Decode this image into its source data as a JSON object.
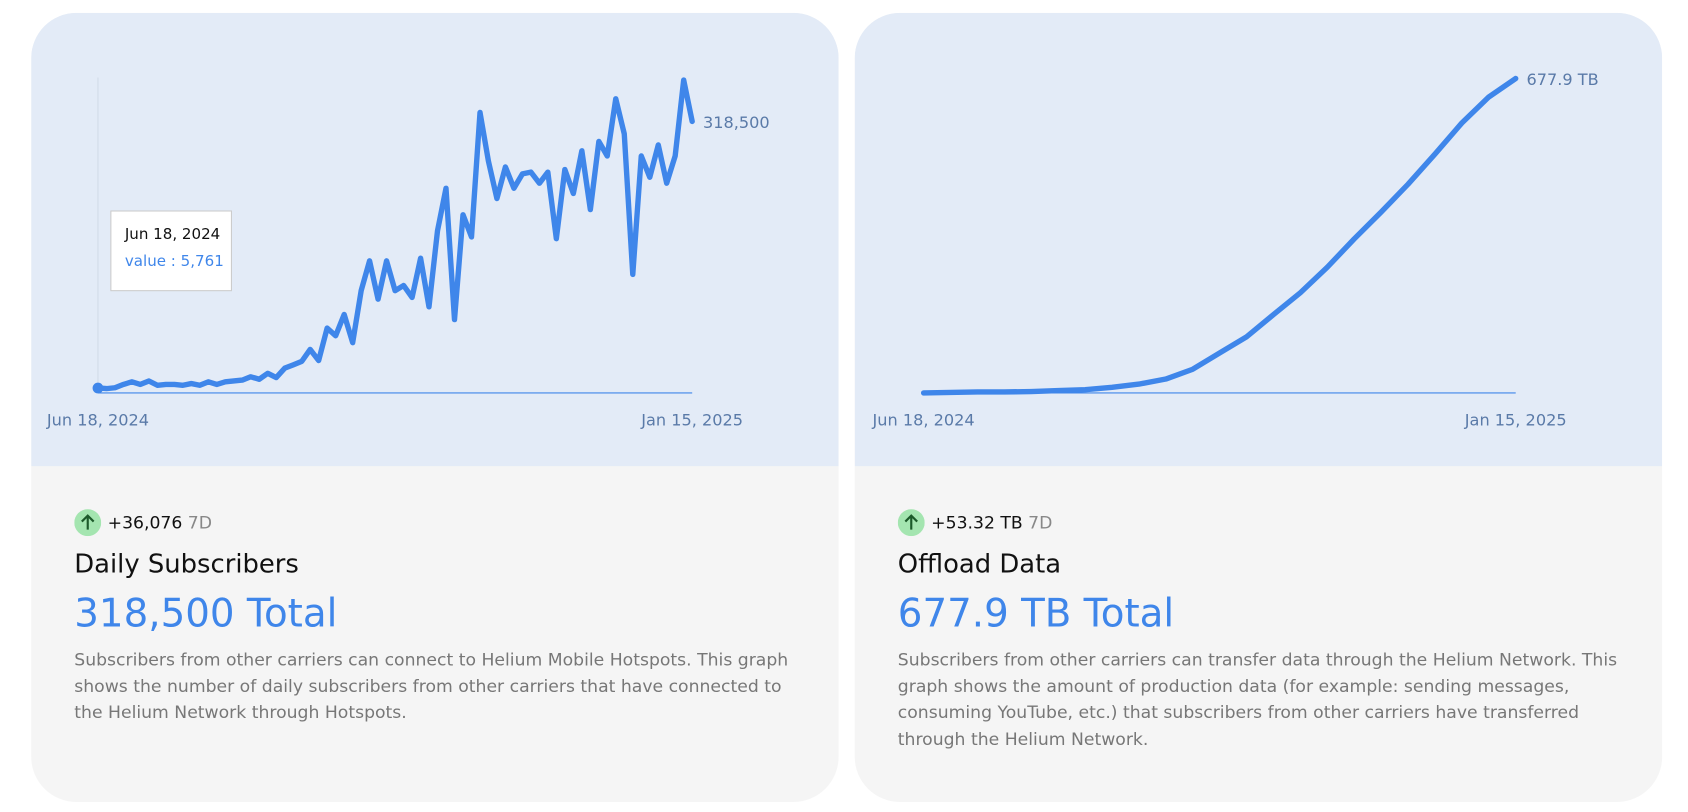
{
  "chart_data": [
    {
      "type": "line",
      "color": "#3f86ea",
      "categories": [
        "Jun 18, 2024",
        null,
        null,
        null,
        null,
        null,
        null,
        null,
        null,
        null,
        null,
        null,
        null,
        null,
        null,
        null,
        null,
        null,
        null,
        null,
        null,
        null,
        null,
        null,
        null,
        null,
        null,
        null,
        null,
        null,
        null,
        null,
        null,
        null,
        null,
        null,
        null,
        null,
        null,
        null,
        null,
        null,
        null,
        null,
        null,
        null,
        null,
        null,
        null,
        null,
        null,
        null,
        null,
        null,
        null,
        null,
        null,
        null,
        null,
        null,
        null,
        null,
        null,
        null,
        null,
        null,
        null,
        null,
        null,
        null,
        "Jan 15, 2025"
      ],
      "values": [
        5761,
        5000,
        6000,
        10000,
        13000,
        10000,
        14000,
        9000,
        10000,
        10000,
        9000,
        11000,
        9000,
        13000,
        10000,
        13000,
        14000,
        15000,
        19000,
        16000,
        23000,
        18000,
        29000,
        33000,
        37000,
        51000,
        38000,
        76000,
        67000,
        92000,
        59000,
        120000,
        155000,
        110000,
        155000,
        120000,
        126000,
        112000,
        158000,
        101000,
        190000,
        240000,
        86000,
        209000,
        183000,
        329000,
        272000,
        228000,
        265000,
        240000,
        257000,
        259000,
        246000,
        259000,
        181000,
        262000,
        234000,
        284000,
        215000,
        295000,
        278000,
        345000,
        304000,
        139000,
        278000,
        253000,
        291000,
        246000,
        278000,
        367000,
        318500
      ],
      "last_value_label": "318,500",
      "ylim": [
        0,
        370000
      ],
      "tooltip": {
        "date": "Jun 18, 2024",
        "text": "value : 5,761"
      }
    },
    {
      "type": "line",
      "color": "#3f86ea",
      "categories": [
        "Jun 18, 2024",
        null,
        null,
        null,
        null,
        null,
        null,
        null,
        null,
        null,
        null,
        null,
        null,
        null,
        null,
        null,
        null,
        null,
        null,
        null,
        null,
        null,
        "Jan 15, 2025"
      ],
      "values": [
        0,
        1,
        2,
        2,
        3,
        5,
        7,
        12,
        19,
        30,
        51,
        86,
        121,
        169,
        216,
        271,
        332,
        390,
        450,
        515,
        582,
        638,
        677.9
      ],
      "last_value_label": "677.9 TB",
      "ylim": [
        0,
        680
      ]
    }
  ],
  "cards": [
    {
      "change": "+36,076",
      "period": "7D",
      "title": "Daily Subscribers",
      "total": "318,500 Total",
      "description": "Subscribers from other carriers can connect to Helium Mobile Hotspots. This graph shows the number of daily subscribers from other carriers that have connected to the Helium Network through Hotspots."
    },
    {
      "change": "+53.32 TB",
      "period": "7D",
      "title": "Offload Data",
      "total": "677.9 TB Total",
      "description": "Subscribers from other carriers can transfer data through the Helium Network. This graph shows the amount of production data (for example: sending messages, consuming YouTube, etc.) that subscribers from other carriers have transferred through the Helium Network."
    }
  ]
}
